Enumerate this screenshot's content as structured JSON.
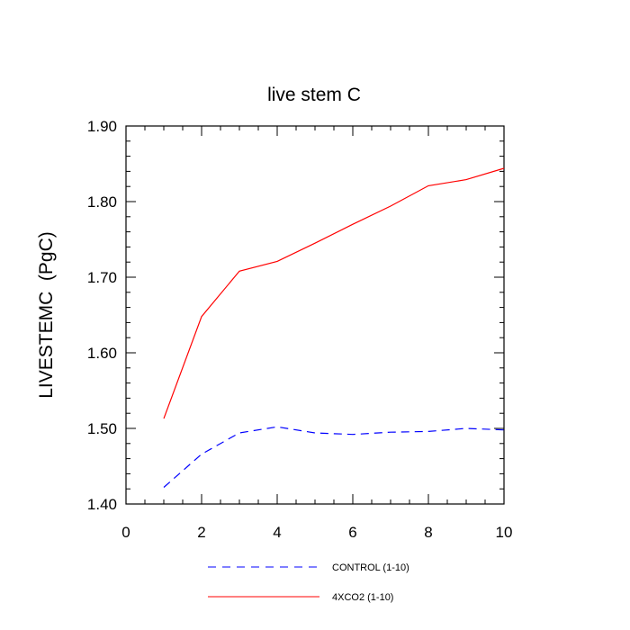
{
  "chart_data": {
    "type": "line",
    "title": "live stem C",
    "xlabel": "",
    "ylabel": "LIVESTEMC  (PgC)",
    "xlim": [
      0,
      10
    ],
    "ylim": [
      1.4,
      1.9
    ],
    "x_ticks": [
      0,
      2,
      4,
      6,
      8,
      10
    ],
    "x_tick_labels": [
      "0",
      "2",
      "4",
      "6",
      "8",
      "10"
    ],
    "y_ticks": [
      1.4,
      1.5,
      1.6,
      1.7,
      1.8,
      1.9
    ],
    "y_tick_labels": [
      "1.40",
      "1.50",
      "1.60",
      "1.70",
      "1.80",
      "1.90"
    ],
    "grid": false,
    "legend_position": "bottom",
    "x": [
      1,
      2,
      3,
      4,
      5,
      6,
      7,
      8,
      9,
      10
    ],
    "series": [
      {
        "name": "CONTROL (1-10)",
        "color": "#0000ff",
        "style": "dashed",
        "values": [
          1.422,
          1.466,
          1.494,
          1.502,
          1.494,
          1.492,
          1.495,
          1.496,
          1.5,
          1.498
        ]
      },
      {
        "name": "4XCO2 (1-10)",
        "color": "#ff0000",
        "style": "solid",
        "values": [
          1.513,
          1.648,
          1.708,
          1.721,
          1.745,
          1.77,
          1.794,
          1.821,
          1.829,
          1.844
        ]
      }
    ]
  }
}
